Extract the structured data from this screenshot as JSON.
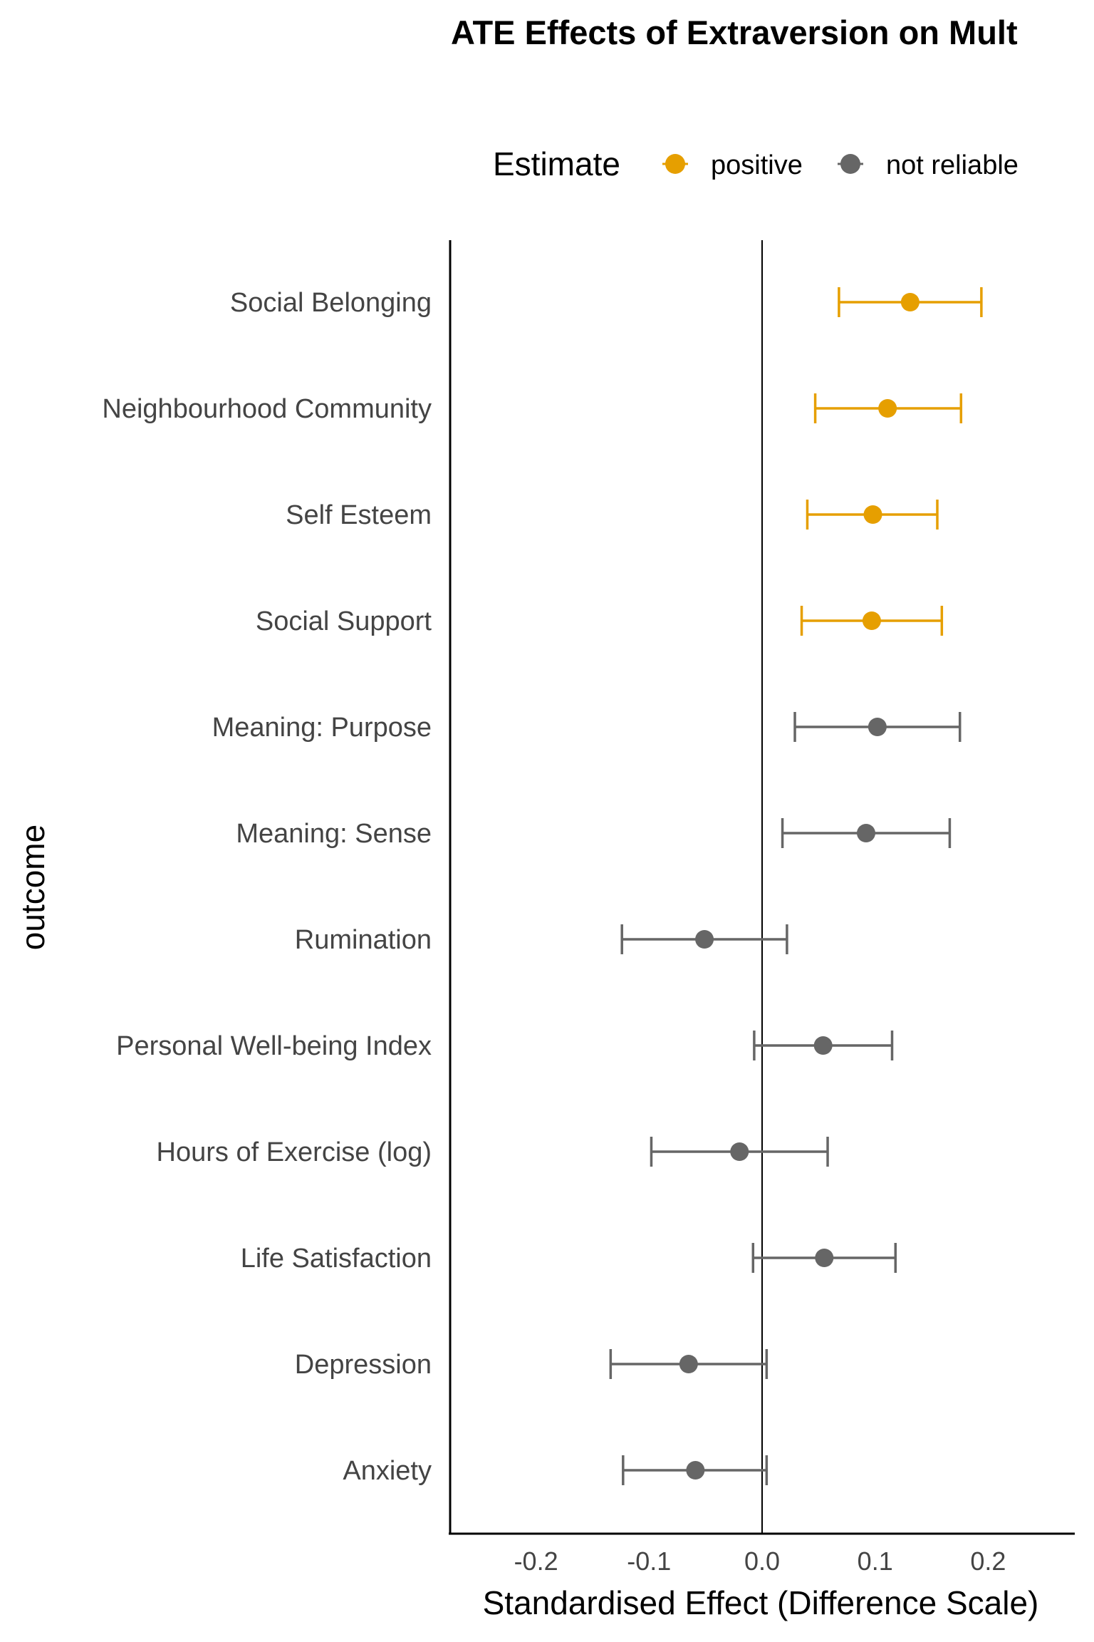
{
  "chart_data": {
    "type": "scatter",
    "title": "ATE Effects of Extraversion on Mult",
    "xlabel": "Standardised Effect (Difference Scale)",
    "ylabel": "outcome",
    "xlim": [
      -0.27,
      0.27
    ],
    "x_ticks": [
      -0.2,
      -0.1,
      0.0,
      0.1,
      0.2
    ],
    "x_tick_labels": [
      "-0.2",
      "-0.1",
      "0.0",
      "0.1",
      "0.2"
    ],
    "reference_line_x": 0,
    "grid": false,
    "legend": {
      "title": "Estimate",
      "position": "top",
      "entries": [
        {
          "key": "positive",
          "label": "positive",
          "color": "#E69F00"
        },
        {
          "key": "not_reliable",
          "label": "not reliable",
          "color": "#666666"
        }
      ]
    },
    "categories": [
      "Social Belonging",
      "Neighbourhood Community",
      "Self Esteem",
      "Social Support",
      "Meaning: Purpose",
      "Meaning: Sense",
      "Rumination",
      "Personal Well-being Index",
      "Hours of Exercise (log)",
      "Life Satisfaction",
      "Depression",
      "Anxiety"
    ],
    "estimates": [
      0.131,
      0.111,
      0.098,
      0.097,
      0.102,
      0.092,
      -0.051,
      0.054,
      -0.02,
      0.055,
      -0.065,
      -0.059
    ],
    "ci_lower": [
      0.068,
      0.047,
      0.04,
      0.035,
      0.029,
      0.018,
      -0.124,
      -0.007,
      -0.098,
      -0.008,
      -0.134,
      -0.123
    ],
    "ci_upper": [
      0.194,
      0.176,
      0.155,
      0.159,
      0.175,
      0.166,
      0.022,
      0.115,
      0.058,
      0.118,
      0.004,
      0.004
    ],
    "groups": [
      "positive",
      "positive",
      "positive",
      "positive",
      "not_reliable",
      "not_reliable",
      "not_reliable",
      "not_reliable",
      "not_reliable",
      "not_reliable",
      "not_reliable",
      "not_reliable"
    ]
  }
}
